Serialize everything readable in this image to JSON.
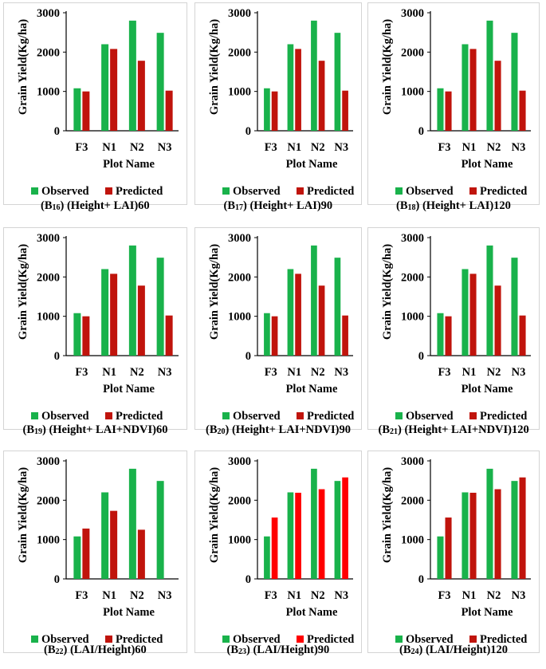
{
  "colors": {
    "observed": "#19b24b",
    "predicted": "#c0140c",
    "predicted_bright": "#ff0000",
    "axis": "#000000",
    "border": "#d4d4d4"
  },
  "chart_data": [
    {
      "id": "B16",
      "type": "bar",
      "caption": "(B16) (Height+ LAI)60",
      "caption_parts": {
        "pre": "(B",
        "sub": "16",
        "post": ") (Height+ LAI)60"
      },
      "xlabel": "Plot Name",
      "ylabel": "Grain Yield(Kg/ha)",
      "ylim": [
        0,
        3000
      ],
      "yticks": [
        "0",
        "1000",
        "2000",
        "3000"
      ],
      "categories": [
        "F3",
        "N1",
        "N2",
        "N3"
      ],
      "series": [
        {
          "name": "Observed",
          "values": [
            1080,
            2200,
            2800,
            2490
          ]
        },
        {
          "name": "Predicted",
          "values": [
            1000,
            2080,
            1780,
            1020
          ]
        }
      ],
      "legend": "bottom"
    },
    {
      "id": "B17",
      "type": "bar",
      "caption": "(B17) (Height+ LAI)90",
      "caption_parts": {
        "pre": "(B",
        "sub": "17",
        "post": ") (Height+ LAI)90"
      },
      "xlabel": "Plot Name",
      "ylabel": "Grain Yield(Kg/ha)",
      "ylim": [
        0,
        3000
      ],
      "yticks": [
        "0",
        "1000",
        "2000",
        "3000"
      ],
      "categories": [
        "F3",
        "N1",
        "N2",
        "N3"
      ],
      "series": [
        {
          "name": "Observed",
          "values": [
            1080,
            2200,
            2800,
            2490
          ]
        },
        {
          "name": "Predicted",
          "values": [
            1000,
            2080,
            1780,
            1020
          ]
        }
      ],
      "legend": "bottom"
    },
    {
      "id": "B18",
      "type": "bar",
      "caption": "(B18) (Height+ LAI)120",
      "caption_parts": {
        "pre": "(B",
        "sub": "18",
        "post": ") (Height+ LAI)120"
      },
      "xlabel": "Plot Name",
      "ylabel": "Grain Yield(Kg/ha)",
      "ylim": [
        0,
        3000
      ],
      "yticks": [
        "0",
        "1000",
        "2000",
        "3000"
      ],
      "categories": [
        "F3",
        "N1",
        "N2",
        "N3"
      ],
      "series": [
        {
          "name": "Observed",
          "values": [
            1080,
            2200,
            2800,
            2490
          ]
        },
        {
          "name": "Predicted",
          "values": [
            1000,
            2080,
            1780,
            1020
          ]
        }
      ],
      "legend": "bottom"
    },
    {
      "id": "B19",
      "type": "bar",
      "caption": "(B19) (Height+ LAI+NDVI)60",
      "caption_parts": {
        "pre": "(B",
        "sub": "19",
        "post": ") (Height+ LAI+NDVI)60"
      },
      "xlabel": "Plot Name",
      "ylabel": "Grain Yield(Kg/ha)",
      "ylim": [
        0,
        3000
      ],
      "yticks": [
        "0",
        "1000",
        "2000",
        "3000"
      ],
      "categories": [
        "F3",
        "N1",
        "N2",
        "N3"
      ],
      "series": [
        {
          "name": "Observed",
          "values": [
            1080,
            2200,
            2800,
            2490
          ]
        },
        {
          "name": "Predicted",
          "values": [
            1000,
            2080,
            1780,
            1020
          ]
        }
      ],
      "legend": "bottom"
    },
    {
      "id": "B20",
      "type": "bar",
      "caption": "(B20) (Height+ LAI+NDVI)90",
      "caption_parts": {
        "pre": "(B",
        "sub": "20",
        "post": ") (Height+ LAI+NDVI)90"
      },
      "xlabel": "Plot Name",
      "ylabel": "Grain Yield(Kg/ha)",
      "ylim": [
        0,
        3000
      ],
      "yticks": [
        "0",
        "1000",
        "2000",
        "3000"
      ],
      "categories": [
        "F3",
        "N1",
        "N2",
        "N3"
      ],
      "series": [
        {
          "name": "Observed",
          "values": [
            1080,
            2200,
            2800,
            2490
          ]
        },
        {
          "name": "Predicted",
          "values": [
            1000,
            2080,
            1780,
            1020
          ]
        }
      ],
      "legend": "bottom"
    },
    {
      "id": "B21",
      "type": "bar",
      "caption": "(B21) (Height+ LAI+NDVI)120",
      "caption_parts": {
        "pre": "(B",
        "sub": "21",
        "post": ") (Height+ LAI+NDVI)120"
      },
      "xlabel": "Plot Name",
      "ylabel": "Grain Yield(Kg/ha)",
      "ylim": [
        0,
        3000
      ],
      "yticks": [
        "0",
        "1000",
        "2000",
        "3000"
      ],
      "categories": [
        "F3",
        "N1",
        "N2",
        "N3"
      ],
      "series": [
        {
          "name": "Observed",
          "values": [
            1080,
            2200,
            2800,
            2490
          ]
        },
        {
          "name": "Predicted",
          "values": [
            1000,
            2080,
            1780,
            1020
          ]
        }
      ],
      "legend": "bottom"
    },
    {
      "id": "B22",
      "type": "bar",
      "caption": "(B22) (LAI/Height)60",
      "caption_parts": {
        "pre": "(B",
        "sub": "22",
        "post": ") (LAI/Height)60"
      },
      "xlabel": "Plot Name",
      "ylabel": "Grain Yield(Kg/ha)",
      "ylim": [
        0,
        3000
      ],
      "yticks": [
        "0",
        "1000",
        "2000",
        "3000"
      ],
      "categories": [
        "F3",
        "N1",
        "N2",
        "N3"
      ],
      "series": [
        {
          "name": "Observed",
          "values": [
            1080,
            2200,
            2800,
            2490
          ]
        },
        {
          "name": "Predicted",
          "values": [
            1280,
            1730,
            1250,
            0
          ]
        }
      ],
      "legend": "bottom"
    },
    {
      "id": "B23",
      "type": "bar",
      "caption": "(B23) (LAI/Height)90",
      "caption_parts": {
        "pre": "(B",
        "sub": "23",
        "post": ") (LAI/Height)90"
      },
      "xlabel": "Plot Name",
      "ylabel": "Grain Yield(Kg/ha)",
      "ylim": [
        0,
        3000
      ],
      "yticks": [
        "0",
        "1000",
        "2000",
        "3000"
      ],
      "categories": [
        "F3",
        "N1",
        "N2",
        "N3"
      ],
      "series": [
        {
          "name": "Observed",
          "values": [
            1080,
            2200,
            2800,
            2490
          ]
        },
        {
          "name": "Predicted",
          "values": [
            1560,
            2190,
            2280,
            2580
          ]
        }
      ],
      "predicted_color": "bright",
      "legend": "bottom"
    },
    {
      "id": "B24",
      "type": "bar",
      "caption": "(B24) (LAI/Height)120",
      "caption_parts": {
        "pre": "(B",
        "sub": "24",
        "post": ") (LAI/Height)120"
      },
      "xlabel": "Plot Name",
      "ylabel": "Grain Yield(Kg/ha)",
      "ylim": [
        0,
        3000
      ],
      "yticks": [
        "0",
        "1000",
        "2000",
        "3000"
      ],
      "categories": [
        "F3",
        "N1",
        "N2",
        "N3"
      ],
      "series": [
        {
          "name": "Observed",
          "values": [
            1080,
            2200,
            2800,
            2490
          ]
        },
        {
          "name": "Predicted",
          "values": [
            1560,
            2190,
            2280,
            2580
          ]
        }
      ],
      "legend": "bottom"
    }
  ]
}
